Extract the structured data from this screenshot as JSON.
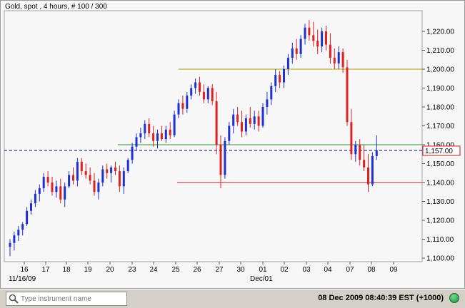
{
  "title": "Gold, spot , 4 hours, # 100 / 300",
  "search": {
    "placeholder": "Type instrument name",
    "value": ""
  },
  "status": {
    "clock": "08 Dec 2009 08:40:39  EST (+1000)"
  },
  "colors": {
    "up": "#1f2fd6",
    "down": "#e02020",
    "background": "#f7f7f7",
    "price_line": "#00007f"
  },
  "icons": {
    "search": "search-icon",
    "connection": "connection-status-icon"
  },
  "chart_data": {
    "type": "candlestick",
    "instrument": "Gold, spot",
    "timeframe": "4 hours",
    "ylim": [
      1100,
      1230
    ],
    "y_ticks": [
      "1,100.00",
      "1,110.00",
      "1,120.00",
      "1,130.00",
      "1,140.00",
      "1,150.00",
      "1,160.00",
      "1,170.00",
      "1,180.00",
      "1,190.00",
      "1,200.00",
      "1,210.00",
      "1,220.00"
    ],
    "x_ticks": [
      "16",
      "17",
      "18",
      "19",
      "20",
      "23",
      "24",
      "25",
      "26",
      "27",
      "30",
      "01",
      "02",
      "03",
      "04",
      "07",
      "08",
      "09"
    ],
    "x_sub_labels": [
      "11/16/09",
      "Dec/01"
    ],
    "current_price": "1,157.00",
    "grid": false,
    "horizontal_levels": [
      {
        "value": 1200,
        "color": "#b8a000"
      },
      {
        "value": 1160,
        "color": "#2e9b2e"
      },
      {
        "value": 1140,
        "color": "#c02020"
      }
    ],
    "candles": [
      {
        "o": 1106,
        "h": 1110,
        "l": 1101,
        "c": 1108
      },
      {
        "o": 1108,
        "h": 1114,
        "l": 1104,
        "c": 1112
      },
      {
        "o": 1112,
        "h": 1117,
        "l": 1109,
        "c": 1115
      },
      {
        "o": 1115,
        "h": 1119,
        "l": 1112,
        "c": 1118
      },
      {
        "o": 1118,
        "h": 1127,
        "l": 1117,
        "c": 1125
      },
      {
        "o": 1125,
        "h": 1131,
        "l": 1123,
        "c": 1129
      },
      {
        "o": 1129,
        "h": 1136,
        "l": 1127,
        "c": 1134
      },
      {
        "o": 1134,
        "h": 1139,
        "l": 1130,
        "c": 1137
      },
      {
        "o": 1137,
        "h": 1145,
        "l": 1135,
        "c": 1143
      },
      {
        "o": 1143,
        "h": 1146,
        "l": 1138,
        "c": 1140
      },
      {
        "o": 1140,
        "h": 1143,
        "l": 1133,
        "c": 1135
      },
      {
        "o": 1135,
        "h": 1141,
        "l": 1132,
        "c": 1138
      },
      {
        "o": 1138,
        "h": 1142,
        "l": 1129,
        "c": 1131
      },
      {
        "o": 1131,
        "h": 1140,
        "l": 1127,
        "c": 1138
      },
      {
        "o": 1138,
        "h": 1146,
        "l": 1137,
        "c": 1144
      },
      {
        "o": 1144,
        "h": 1148,
        "l": 1139,
        "c": 1141
      },
      {
        "o": 1141,
        "h": 1153,
        "l": 1138,
        "c": 1151
      },
      {
        "o": 1151,
        "h": 1153,
        "l": 1144,
        "c": 1146
      },
      {
        "o": 1146,
        "h": 1150,
        "l": 1142,
        "c": 1144
      },
      {
        "o": 1144,
        "h": 1148,
        "l": 1139,
        "c": 1141
      },
      {
        "o": 1141,
        "h": 1145,
        "l": 1133,
        "c": 1135
      },
      {
        "o": 1135,
        "h": 1142,
        "l": 1131,
        "c": 1140
      },
      {
        "o": 1140,
        "h": 1149,
        "l": 1138,
        "c": 1147
      },
      {
        "o": 1147,
        "h": 1150,
        "l": 1142,
        "c": 1145
      },
      {
        "o": 1145,
        "h": 1149,
        "l": 1140,
        "c": 1148
      },
      {
        "o": 1148,
        "h": 1151,
        "l": 1144,
        "c": 1146
      },
      {
        "o": 1146,
        "h": 1149,
        "l": 1135,
        "c": 1138
      },
      {
        "o": 1138,
        "h": 1148,
        "l": 1134,
        "c": 1146
      },
      {
        "o": 1146,
        "h": 1153,
        "l": 1145,
        "c": 1152
      },
      {
        "o": 1152,
        "h": 1161,
        "l": 1150,
        "c": 1159
      },
      {
        "o": 1159,
        "h": 1166,
        "l": 1157,
        "c": 1164
      },
      {
        "o": 1164,
        "h": 1169,
        "l": 1161,
        "c": 1166
      },
      {
        "o": 1166,
        "h": 1173,
        "l": 1163,
        "c": 1171
      },
      {
        "o": 1171,
        "h": 1174,
        "l": 1164,
        "c": 1166
      },
      {
        "o": 1166,
        "h": 1170,
        "l": 1159,
        "c": 1162
      },
      {
        "o": 1162,
        "h": 1168,
        "l": 1158,
        "c": 1166
      },
      {
        "o": 1166,
        "h": 1170,
        "l": 1162,
        "c": 1163
      },
      {
        "o": 1163,
        "h": 1170,
        "l": 1161,
        "c": 1168
      },
      {
        "o": 1168,
        "h": 1172,
        "l": 1163,
        "c": 1165
      },
      {
        "o": 1165,
        "h": 1178,
        "l": 1164,
        "c": 1176
      },
      {
        "o": 1176,
        "h": 1184,
        "l": 1174,
        "c": 1182
      },
      {
        "o": 1182,
        "h": 1186,
        "l": 1176,
        "c": 1179
      },
      {
        "o": 1179,
        "h": 1188,
        "l": 1177,
        "c": 1186
      },
      {
        "o": 1186,
        "h": 1192,
        "l": 1184,
        "c": 1190
      },
      {
        "o": 1190,
        "h": 1195,
        "l": 1187,
        "c": 1193
      },
      {
        "o": 1193,
        "h": 1196,
        "l": 1186,
        "c": 1188
      },
      {
        "o": 1188,
        "h": 1192,
        "l": 1182,
        "c": 1184
      },
      {
        "o": 1184,
        "h": 1191,
        "l": 1182,
        "c": 1190
      },
      {
        "o": 1190,
        "h": 1192,
        "l": 1181,
        "c": 1183
      },
      {
        "o": 1183,
        "h": 1188,
        "l": 1155,
        "c": 1160
      },
      {
        "o": 1160,
        "h": 1165,
        "l": 1137,
        "c": 1144
      },
      {
        "o": 1144,
        "h": 1164,
        "l": 1142,
        "c": 1162
      },
      {
        "o": 1162,
        "h": 1172,
        "l": 1160,
        "c": 1170
      },
      {
        "o": 1170,
        "h": 1179,
        "l": 1166,
        "c": 1176
      },
      {
        "o": 1176,
        "h": 1180,
        "l": 1170,
        "c": 1172
      },
      {
        "o": 1172,
        "h": 1178,
        "l": 1164,
        "c": 1167
      },
      {
        "o": 1167,
        "h": 1176,
        "l": 1165,
        "c": 1174
      },
      {
        "o": 1174,
        "h": 1180,
        "l": 1169,
        "c": 1171
      },
      {
        "o": 1171,
        "h": 1178,
        "l": 1168,
        "c": 1175
      },
      {
        "o": 1175,
        "h": 1178,
        "l": 1167,
        "c": 1170
      },
      {
        "o": 1170,
        "h": 1182,
        "l": 1169,
        "c": 1180
      },
      {
        "o": 1180,
        "h": 1188,
        "l": 1176,
        "c": 1184
      },
      {
        "o": 1184,
        "h": 1193,
        "l": 1181,
        "c": 1191
      },
      {
        "o": 1191,
        "h": 1200,
        "l": 1188,
        "c": 1197
      },
      {
        "o": 1197,
        "h": 1199,
        "l": 1190,
        "c": 1193
      },
      {
        "o": 1193,
        "h": 1202,
        "l": 1190,
        "c": 1200
      },
      {
        "o": 1200,
        "h": 1208,
        "l": 1197,
        "c": 1206
      },
      {
        "o": 1206,
        "h": 1214,
        "l": 1203,
        "c": 1211
      },
      {
        "o": 1211,
        "h": 1216,
        "l": 1205,
        "c": 1208
      },
      {
        "o": 1208,
        "h": 1218,
        "l": 1206,
        "c": 1216
      },
      {
        "o": 1216,
        "h": 1224,
        "l": 1213,
        "c": 1222
      },
      {
        "o": 1222,
        "h": 1226,
        "l": 1215,
        "c": 1218
      },
      {
        "o": 1218,
        "h": 1225,
        "l": 1212,
        "c": 1215
      },
      {
        "o": 1215,
        "h": 1221,
        "l": 1208,
        "c": 1212
      },
      {
        "o": 1212,
        "h": 1222,
        "l": 1209,
        "c": 1220
      },
      {
        "o": 1220,
        "h": 1223,
        "l": 1210,
        "c": 1213
      },
      {
        "o": 1213,
        "h": 1219,
        "l": 1203,
        "c": 1206
      },
      {
        "o": 1206,
        "h": 1211,
        "l": 1200,
        "c": 1203
      },
      {
        "o": 1203,
        "h": 1212,
        "l": 1200,
        "c": 1209
      },
      {
        "o": 1209,
        "h": 1211,
        "l": 1198,
        "c": 1201
      },
      {
        "o": 1201,
        "h": 1205,
        "l": 1170,
        "c": 1172
      },
      {
        "o": 1172,
        "h": 1179,
        "l": 1152,
        "c": 1155
      },
      {
        "o": 1155,
        "h": 1162,
        "l": 1151,
        "c": 1160
      },
      {
        "o": 1160,
        "h": 1163,
        "l": 1149,
        "c": 1152
      },
      {
        "o": 1152,
        "h": 1160,
        "l": 1146,
        "c": 1148
      },
      {
        "o": 1148,
        "h": 1155,
        "l": 1135,
        "c": 1139
      },
      {
        "o": 1139,
        "h": 1156,
        "l": 1138,
        "c": 1154
      },
      {
        "o": 1154,
        "h": 1165,
        "l": 1152,
        "c": 1157
      }
    ]
  }
}
